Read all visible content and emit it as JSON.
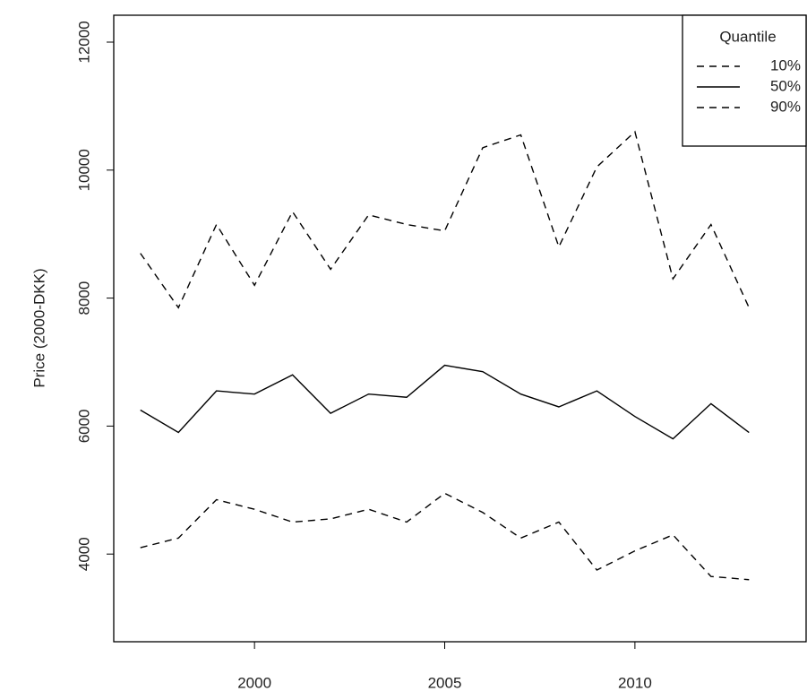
{
  "chart_data": {
    "type": "line",
    "ylabel": "Price (2000-DKK)",
    "x": [
      1997,
      1998,
      1999,
      2000,
      2001,
      2002,
      2003,
      2004,
      2005,
      2006,
      2007,
      2008,
      2009,
      2010,
      2011,
      2012,
      2013
    ],
    "series": [
      {
        "name": "10%",
        "color": "#000000",
        "line_style": "dashed",
        "values": [
          4100,
          4250,
          4850,
          4700,
          4500,
          4550,
          4700,
          4500,
          4950,
          4650,
          4250,
          4500,
          3750,
          4050,
          4300,
          3650,
          3600
        ]
      },
      {
        "name": "50%",
        "color": "#000000",
        "line_style": "solid",
        "values": [
          6250,
          5900,
          6550,
          6500,
          6800,
          6200,
          6500,
          6450,
          6950,
          6850,
          6500,
          6300,
          6550,
          6150,
          5800,
          6350,
          5900
        ]
      },
      {
        "name": "90%",
        "color": "#000000",
        "line_style": "dashed",
        "values": [
          8700,
          7850,
          9150,
          8200,
          9350,
          8450,
          9300,
          9150,
          9050,
          10350,
          10550,
          8800,
          10050,
          10600,
          8300,
          9150,
          7850
        ]
      }
    ],
    "legend_title": "Quantile",
    "legend": "top-right",
    "xlim": [
      1996.3,
      2014.5
    ],
    "xticks": [
      2000,
      2005,
      2010
    ],
    "ylim": [
      2630,
      12420
    ],
    "yticks": [
      4000,
      6000,
      8000,
      10000,
      12000
    ],
    "grid": false
  }
}
